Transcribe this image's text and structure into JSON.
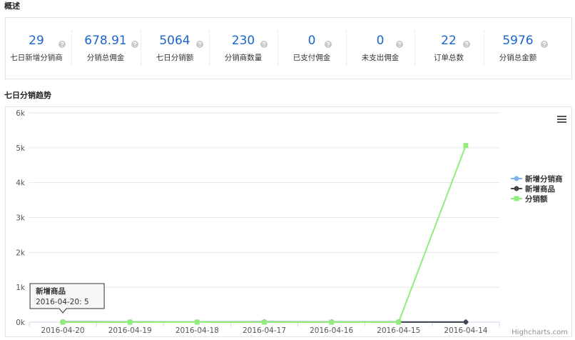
{
  "overview": {
    "title": "概述",
    "stats": [
      {
        "value": "29",
        "label": "七日新增分销商"
      },
      {
        "value": "678.91",
        "label": "分销总佣金"
      },
      {
        "value": "5064",
        "label": "七日分销额"
      },
      {
        "value": "230",
        "label": "分销商数量"
      },
      {
        "value": "0",
        "label": "已支付佣金"
      },
      {
        "value": "0",
        "label": "未支出佣金"
      },
      {
        "value": "22",
        "label": "订单总数"
      },
      {
        "value": "5976",
        "label": "分销总金额"
      }
    ],
    "help_icon": "question-circle-icon"
  },
  "trend": {
    "title": "七日分销趋势",
    "menu_icon": "hamburger-menu-icon",
    "credit": "Highcharts.com"
  },
  "chart_data": {
    "type": "line",
    "categories": [
      "2016-04-20",
      "2016-04-19",
      "2016-04-18",
      "2016-04-17",
      "2016-04-16",
      "2016-04-15",
      "2016-04-14"
    ],
    "ylim": [
      0,
      6000
    ],
    "yticks": [
      "0k",
      "1k",
      "2k",
      "3k",
      "4k",
      "5k",
      "6k"
    ],
    "grid": true,
    "legend": "right",
    "series": [
      {
        "name": "新增分销商",
        "color": "#7cb5ec",
        "marker": "circle",
        "values": [
          5,
          4,
          3,
          5,
          4,
          4,
          4
        ]
      },
      {
        "name": "新增商品",
        "color": "#434348",
        "marker": "diamond",
        "values": [
          5,
          3,
          2,
          4,
          3,
          3,
          2
        ]
      },
      {
        "name": "分销额",
        "color": "#90ed7d",
        "marker": "square",
        "values": [
          0,
          0,
          0,
          0,
          0,
          0,
          5064
        ]
      }
    ],
    "tooltip": {
      "series": "新增商品",
      "text": "2016-04-20: 5"
    }
  }
}
